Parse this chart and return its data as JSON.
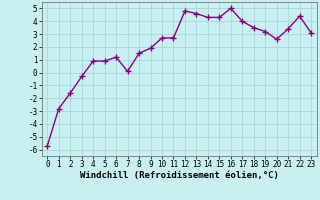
{
  "x": [
    0,
    1,
    2,
    3,
    4,
    5,
    6,
    7,
    8,
    9,
    10,
    11,
    12,
    13,
    14,
    15,
    16,
    17,
    18,
    19,
    20,
    21,
    22,
    23
  ],
  "y": [
    -5.7,
    -2.8,
    -1.6,
    -0.3,
    0.9,
    0.9,
    1.2,
    0.1,
    1.5,
    1.9,
    2.7,
    2.7,
    4.8,
    4.6,
    4.3,
    4.3,
    5.0,
    4.0,
    3.5,
    3.2,
    2.6,
    3.4,
    4.4,
    3.1
  ],
  "line_color": "#880088",
  "marker": "+",
  "marker_size": 4,
  "linewidth": 1.0,
  "xlabel": "Windchill (Refroidissement éolien,°C)",
  "xlim": [
    -0.5,
    23.5
  ],
  "ylim": [
    -6.5,
    5.5
  ],
  "yticks": [
    -6,
    -5,
    -4,
    -3,
    -2,
    -1,
    0,
    1,
    2,
    3,
    4,
    5
  ],
  "xticks": [
    0,
    1,
    2,
    3,
    4,
    5,
    6,
    7,
    8,
    9,
    10,
    11,
    12,
    13,
    14,
    15,
    16,
    17,
    18,
    19,
    20,
    21,
    22,
    23
  ],
  "bg_color": "#c8f0f0",
  "grid_color": "#a8d8d8",
  "tick_fontsize": 5.5,
  "xlabel_fontsize": 6.5,
  "marker_color": "#880088"
}
